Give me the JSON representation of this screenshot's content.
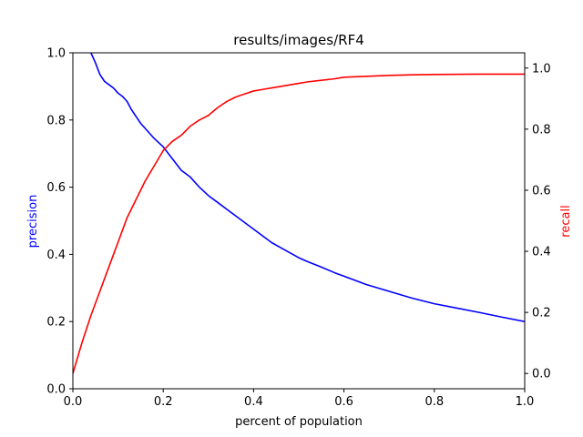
{
  "chart_data": {
    "type": "line",
    "title": "results/images/RF4",
    "xlabel": "percent of population",
    "ylabel_left": "precision",
    "ylabel_right": "recall",
    "xlim": [
      0.0,
      1.0
    ],
    "ylim_left": [
      0.0,
      1.0
    ],
    "ylim_right": [
      -0.05,
      1.05
    ],
    "x_ticks": [
      "0.0",
      "0.2",
      "0.4",
      "0.6",
      "0.8",
      "1.0"
    ],
    "y_ticks_left": [
      "0.0",
      "0.2",
      "0.4",
      "0.6",
      "0.8",
      "1.0"
    ],
    "y_ticks_right": [
      "0.0",
      "0.2",
      "0.4",
      "0.6",
      "0.8",
      "1.0"
    ],
    "grid": false,
    "series": [
      {
        "name": "precision",
        "axis": "left",
        "color": "#0000ff",
        "x": [
          0.04,
          0.05,
          0.06,
          0.07,
          0.08,
          0.09,
          0.1,
          0.11,
          0.12,
          0.13,
          0.14,
          0.15,
          0.16,
          0.18,
          0.2,
          0.22,
          0.24,
          0.26,
          0.28,
          0.3,
          0.32,
          0.34,
          0.36,
          0.38,
          0.4,
          0.42,
          0.44,
          0.46,
          0.48,
          0.5,
          0.52,
          0.55,
          0.58,
          0.6,
          0.65,
          0.7,
          0.75,
          0.8,
          0.85,
          0.9,
          0.95,
          1.0
        ],
        "y": [
          1.0,
          0.97,
          0.935,
          0.915,
          0.905,
          0.895,
          0.88,
          0.87,
          0.855,
          0.83,
          0.81,
          0.79,
          0.775,
          0.745,
          0.72,
          0.685,
          0.65,
          0.63,
          0.6,
          0.575,
          0.555,
          0.535,
          0.515,
          0.495,
          0.475,
          0.455,
          0.435,
          0.42,
          0.405,
          0.39,
          0.378,
          0.362,
          0.345,
          0.335,
          0.31,
          0.29,
          0.27,
          0.253,
          0.24,
          0.227,
          0.213,
          0.2
        ]
      },
      {
        "name": "recall",
        "axis": "right",
        "color": "#ff0000",
        "x": [
          0.0,
          0.02,
          0.04,
          0.06,
          0.08,
          0.1,
          0.12,
          0.14,
          0.16,
          0.18,
          0.2,
          0.22,
          0.24,
          0.26,
          0.28,
          0.3,
          0.32,
          0.34,
          0.36,
          0.38,
          0.4,
          0.42,
          0.44,
          0.46,
          0.48,
          0.5,
          0.52,
          0.55,
          0.58,
          0.6,
          0.65,
          0.7,
          0.75,
          0.8,
          0.9,
          1.0
        ],
        "y": [
          0.0,
          0.1,
          0.19,
          0.27,
          0.35,
          0.43,
          0.51,
          0.57,
          0.63,
          0.68,
          0.73,
          0.76,
          0.78,
          0.81,
          0.83,
          0.845,
          0.87,
          0.89,
          0.905,
          0.915,
          0.925,
          0.93,
          0.935,
          0.94,
          0.945,
          0.95,
          0.955,
          0.96,
          0.965,
          0.97,
          0.973,
          0.976,
          0.978,
          0.979,
          0.98,
          0.98
        ]
      }
    ]
  }
}
